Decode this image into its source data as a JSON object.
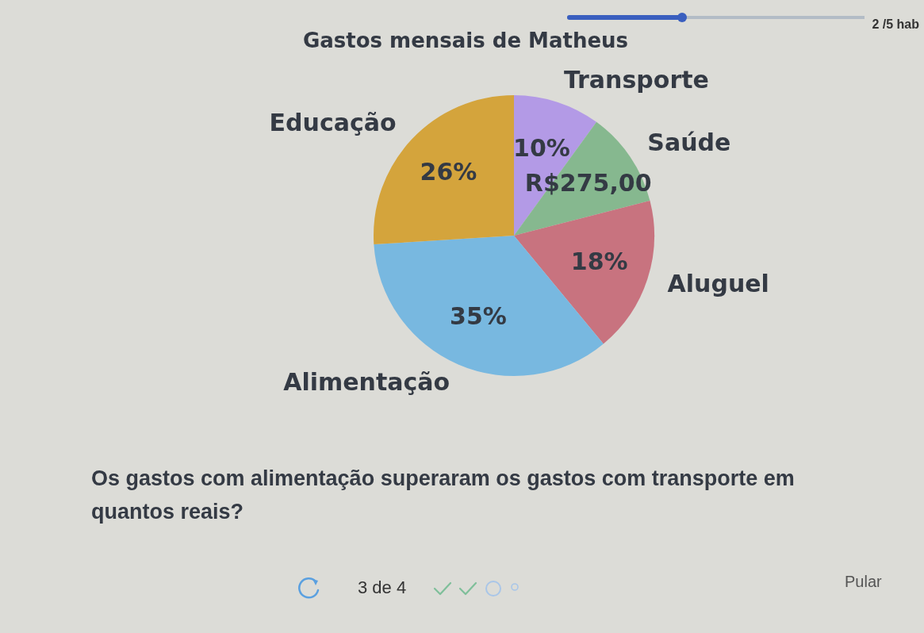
{
  "chart_data": {
    "type": "pie",
    "title": "Gastos mensais de Matheus",
    "categories": [
      "Transporte",
      "Saúde",
      "Aluguel",
      "Alimentação",
      "Educação"
    ],
    "values": [
      10,
      11,
      18,
      35,
      26
    ],
    "value_labels": [
      "10%",
      "R$275,00",
      "18%",
      "35%",
      "26%"
    ],
    "colors": [
      "#b39ae6",
      "#86b88f",
      "#c8737f",
      "#78b8e0",
      "#d4a43c"
    ],
    "annotations": [
      "Os gastos com alimentação superaram os gastos com transporte em quantos reais?",
      "3 de 4",
      "Pular",
      "2 /5 hab"
    ]
  }
}
